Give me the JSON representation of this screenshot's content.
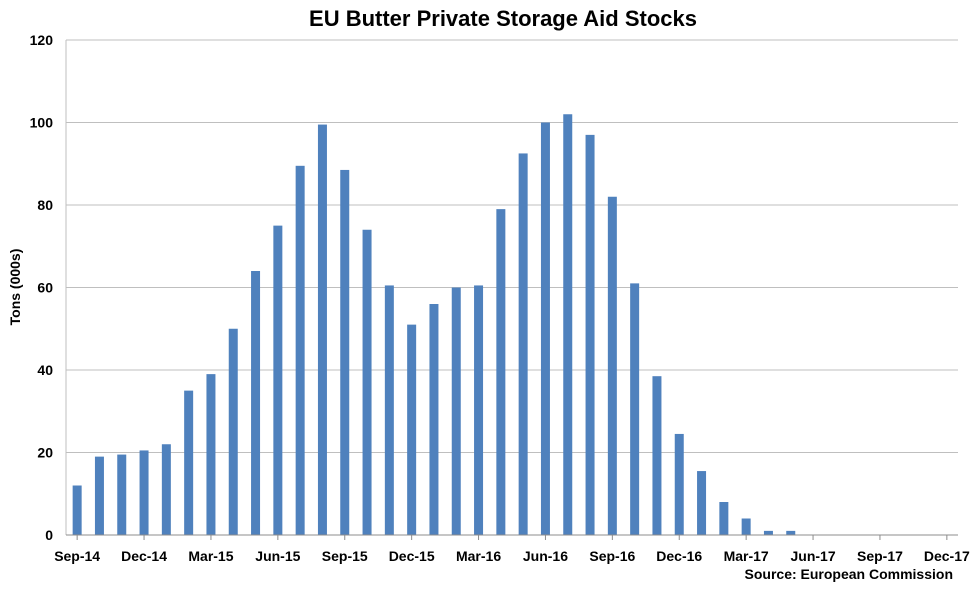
{
  "chart_data": {
    "type": "bar",
    "title": "EU Butter Private Storage Aid Stocks",
    "xlabel": "",
    "ylabel": "Tons (000s)",
    "source": "Source: European Commission",
    "ylim": [
      0,
      120
    ],
    "yticks": [
      0,
      20,
      40,
      60,
      80,
      100,
      120
    ],
    "grid": true,
    "bar_color": "#4F81BD",
    "grid_color": "#BFBFBF",
    "x_tick_labels": [
      "Sep-14",
      "Dec-14",
      "Mar-15",
      "Jun-15",
      "Sep-15",
      "Dec-15",
      "Mar-16",
      "Jun-16",
      "Sep-16",
      "Dec-16",
      "Mar-17",
      "Jun-17",
      "Sep-17",
      "Dec-17"
    ],
    "categories": [
      "Sep-14",
      "Oct-14",
      "Nov-14",
      "Dec-14",
      "Jan-15",
      "Feb-15",
      "Mar-15",
      "Apr-15",
      "May-15",
      "Jun-15",
      "Jul-15",
      "Aug-15",
      "Sep-15",
      "Oct-15",
      "Nov-15",
      "Dec-15",
      "Jan-16",
      "Feb-16",
      "Mar-16",
      "Apr-16",
      "May-16",
      "Jun-16",
      "Jul-16",
      "Aug-16",
      "Sep-16",
      "Oct-16",
      "Nov-16",
      "Dec-16",
      "Jan-17",
      "Feb-17",
      "Mar-17",
      "Apr-17",
      "May-17",
      "Jun-17",
      "Jul-17",
      "Aug-17",
      "Sep-17",
      "Oct-17",
      "Nov-17",
      "Dec-17"
    ],
    "values": [
      12,
      19,
      19.5,
      20.5,
      22,
      35,
      39,
      50,
      64,
      75,
      89.5,
      99.5,
      88.5,
      74,
      60.5,
      51,
      56,
      60,
      60.5,
      79,
      92.5,
      100,
      102,
      97,
      82,
      61,
      38.5,
      24.5,
      15.5,
      8,
      4,
      1,
      1,
      null,
      null,
      null,
      null,
      null,
      null,
      null
    ]
  }
}
